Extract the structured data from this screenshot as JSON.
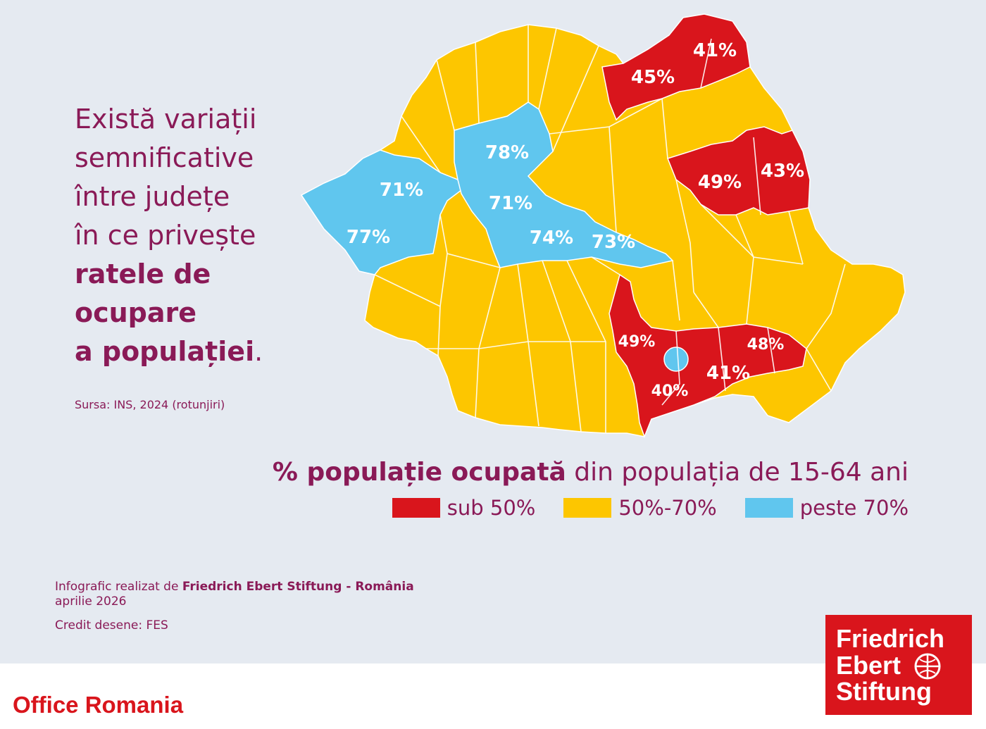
{
  "headline": {
    "lines": [
      "Există variații",
      "semnificative",
      "între județe",
      "în ce privește"
    ],
    "bold_lines": [
      "ratele de",
      "ocupare",
      "a populației"
    ],
    "end_punct": "."
  },
  "source": "Sursa: INS, 2024 (rotunjiri)",
  "map": {
    "colors": {
      "low": "#d9151c",
      "mid": "#fdc600",
      "high": "#60c6ee",
      "border": "#ffffff"
    },
    "labels": [
      {
        "value": "41%",
        "category": "low"
      },
      {
        "value": "45%",
        "category": "low"
      },
      {
        "value": "49%",
        "category": "low"
      },
      {
        "value": "43%",
        "category": "low"
      },
      {
        "value": "78%",
        "category": "high"
      },
      {
        "value": "71%",
        "category": "high"
      },
      {
        "value": "71%",
        "category": "high"
      },
      {
        "value": "77%",
        "category": "high"
      },
      {
        "value": "74%",
        "category": "high"
      },
      {
        "value": "73%",
        "category": "high"
      },
      {
        "value": "49%",
        "category": "low"
      },
      {
        "value": "48%",
        "category": "low"
      },
      {
        "value": "41%",
        "category": "low"
      },
      {
        "value": "40%",
        "category": "low"
      }
    ]
  },
  "legend": {
    "title_bold": "% populație ocupată",
    "title_rest": " din populația de 15-64 ani",
    "items": [
      {
        "label": "sub 50%",
        "color": "#d9151c"
      },
      {
        "label": "50%-70%",
        "color": "#fdc600"
      },
      {
        "label": "peste 70%",
        "color": "#60c6ee"
      }
    ]
  },
  "credits": {
    "made_by_prefix": "Infografic realizat de ",
    "made_by_org": "Friedrich Ebert Stiftung - România",
    "date": "aprilie 2026",
    "drawings": "Credit desene: FES"
  },
  "footer": {
    "office": "Office Romania"
  },
  "logo": {
    "line1": "Friedrich",
    "line2": "Ebert",
    "line3": "Stiftung",
    "color": "#d9151c"
  }
}
